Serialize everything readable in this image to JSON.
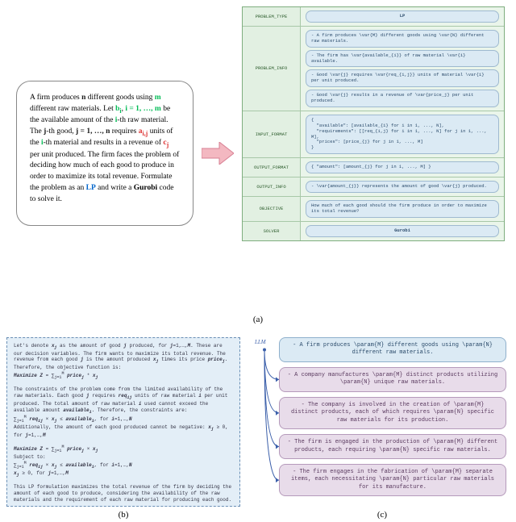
{
  "panel_a": {
    "prompt_html": "A firm produces <span class='kw-n'>n</span> different goods using <span class='kw-m'>m</span> different raw materials. Let <span class='kw-b'>b<sub>i</sub></span>, <span class='kw-b'>i = 1, …, m</span> be the available amount of the <span class='kw-b'>i</span>-th raw material. The <span class='kw-j'>j</span>-th good, <span class='kw-j'>j = 1, …, n</span> requires <span class='kw-a'>a<sub>i,j</sub></span> units of the <span class='kw-b'>i</span>-th material and results in a revenue of <span class='kw-c'>c<sub>j</sub></span> per unit produced. The firm faces the problem of deciding how much of each good to produce in order to maximize its total revenue. Formulate the problem as an <span class='kw-lp'>LP</span> and write a <span class='kw-g'>Gurobi</span> code to solve it.",
    "rows": [
      {
        "label": "PROBLEM_TYPE",
        "items": [
          {
            "text": "LP",
            "center": true
          }
        ]
      },
      {
        "label": "PROBLEM_INFO",
        "items": [
          {
            "text": "- A firm produces \\var{M} different goods using \\var{N} different raw materials."
          },
          {
            "text": "- The firm has \\var{available_{i}} of raw material \\var{i} available."
          },
          {
            "text": "- Good \\var{j} requires \\var{req_{i,j}} units of material \\var{i} per unit produced."
          },
          {
            "text": "- Good \\var{j} results in a revenue of \\var{price_j} per unit produced."
          }
        ]
      },
      {
        "label": "INPUT_FORMAT",
        "items": [
          {
            "text": "{\n  \"available\": [available_{i} for i in 1, ..., N],\n  \"requirements\": [[req_{i,j} for i in 1, ..., N] for j in 1, ..., M],\n  \"prices\": [price_{j} for j in 1, ..., M]\n}"
          }
        ]
      },
      {
        "label": "OUTPUT_FORMAT",
        "items": [
          {
            "text": "{ \"amount\": [amount_{j} for j in 1, ..., M] }"
          }
        ]
      },
      {
        "label": "OUTPUT_INFO",
        "items": [
          {
            "text": "- \\var{amount_{j}} represents the amount of good \\var{j} produced."
          }
        ]
      },
      {
        "label": "OBJECTIVE",
        "items": [
          {
            "text": "How much of each good should the firm produce in order to maximize its total revenue?"
          }
        ]
      },
      {
        "label": "SOLVER",
        "items": [
          {
            "text": "Gurobi",
            "center": true
          }
        ]
      }
    ],
    "caption": "(a)"
  },
  "panel_b": {
    "body_html": "Let's denote <em>x<sub>j</sub></em> as the amount of good <em>j</em> produced, for <em>j</em>=1,…,<em>M</em>. These are our decision variables. The firm wants to maximize its total revenue. The revenue from each good <em>j</em> is the amount produced <em>x<sub>j</sub></em> times its price <em>price<sub>j</sub></em>. Therefore, the objective function is:<br><em>Maximize Z</em> = &sum;<sub>j=1</sub><sup>M</sup> <em>price<sub>j</sub></em> * <em>x<sub>j</sub></em><br><br>The constraints of the problem come from the limited availability of the raw materials. Each good <em>j</em> requires <em>req<sub>ij</sub></em> units of raw material <em>i</em> per unit produced. The total amount of raw material <em>i</em> used cannot exceed the available amount <em>available<sub>i</sub></em>. Therefore, the constraints are:<br>&sum;<sub>j=1</sub><sup>M</sup> <em>req<sub>ij</sub></em> × <em>x<sub>j</sub></em> ≤ <em>available<sub>i</sub></em>,  for <em>i</em>=1,…,<em>N</em><br>Additionally, the amount of each good produced cannot be negative: <em>x<sub>j</sub></em> ≥ 0,  for <em>j</em>=1,…,<em>M</em><br><br><em>Maximize Z</em> = &sum;<sub>j=1</sub><sup>M</sup> <em>price<sub>j</sub></em> × <em>x<sub>j</sub></em><br>Subject to:<br>&sum;<sub>j=1</sub><sup>M</sup> <em>req<sub>ij</sub></em> × <em>x<sub>j</sub></em> ≤ <em>available<sub>i</sub></em>,  for <em>i</em>=1,…,<em>N</em><br><em>x<sub>j</sub></em> ≥ 0,  for <em>j</em>=1,…,<em>M</em><br><br>This LP formulation maximizes the total revenue of the firm by deciding the amount of each good to produce, considering the availability of the raw materials and the requirement of each raw material for producing each good.",
    "caption": "(b)"
  },
  "panel_c": {
    "llm_label": "LLM",
    "items": [
      {
        "style": "c-blue",
        "text": "- A firm produces \\param{M} different goods using \\param{N} different raw materials."
      },
      {
        "style": "c-purp",
        "text": "- A company manufactures \\param{M} distinct products utilizing \\param{N} unique raw materials."
      },
      {
        "style": "c-purp",
        "text": "- The company is involved in the creation of \\param{M} distinct products, each of which requires \\param{N} specific raw materials for its production."
      },
      {
        "style": "c-purp",
        "text": "- The firm is engaged in the production of \\param{M} different products, each requiring \\param{N} specific raw materials."
      },
      {
        "style": "c-purp",
        "text": "- The firm engages in the fabrication of \\param{M} separate items, each necessitating \\param{N} particular raw materials for its manufacture."
      }
    ],
    "caption": "(c)",
    "line_color": "#3b5faa"
  },
  "colors": {
    "table_bg": "#eaf5ea",
    "table_border": "#a8c8a8",
    "pill_bg": "#dbeaf4",
    "pill_border": "#9fbad0",
    "panel_b_bg": "#e3eef7",
    "purple_bg": "#e8dcea",
    "arrow_fill": "#f3b8c1",
    "arrow_stroke": "#d77f93"
  }
}
